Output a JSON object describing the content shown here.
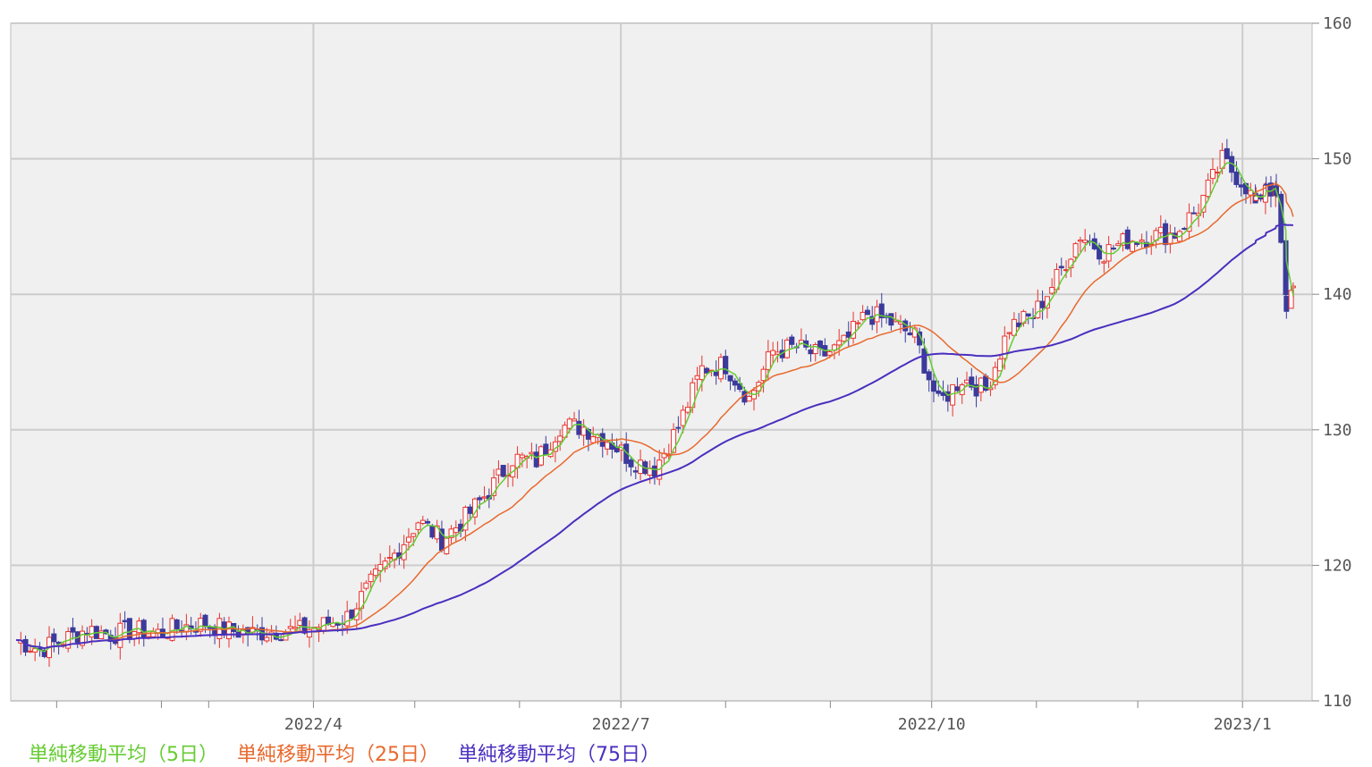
{
  "chart_data": {
    "type": "line",
    "subtype": "candlestick",
    "title": "",
    "xlabel": "",
    "ylabel": "",
    "ylim": [
      110,
      160
    ],
    "yticks": [
      110,
      120,
      130,
      140,
      150,
      160
    ],
    "x_tick_labels": [
      {
        "date": "2022-04-01",
        "label": "2022/4"
      },
      {
        "date": "2022-07-01",
        "label": "2022/7"
      },
      {
        "date": "2022-10-01",
        "label": "2022/10"
      },
      {
        "date": "2023-01-01",
        "label": "2023/1"
      }
    ],
    "minor_grid_dates": [
      "2022-01-15",
      "2022-02-15",
      "2022-03-01",
      "2022-05-01",
      "2022-06-01",
      "2022-08-01",
      "2022-09-01",
      "2022-11-01",
      "2022-12-01"
    ],
    "x_range": [
      "2022-01-03",
      "2023-01-20"
    ],
    "grid": true,
    "legend_position": "bottom",
    "up_color": "#e8332d",
    "down_color": "#3b3b9c",
    "close_series": {
      "name": "close",
      "points": [
        [
          "2022-01-03",
          114.5
        ],
        [
          "2022-01-10",
          113.8
        ],
        [
          "2022-01-17",
          114.5
        ],
        [
          "2022-01-24",
          115.3
        ],
        [
          "2022-01-31",
          114.9
        ],
        [
          "2022-02-07",
          115.2
        ],
        [
          "2022-02-14",
          115.0
        ],
        [
          "2022-02-21",
          115.5
        ],
        [
          "2022-02-28",
          115.7
        ],
        [
          "2022-03-07",
          115.2
        ],
        [
          "2022-03-14",
          115.0
        ],
        [
          "2022-03-21",
          115.2
        ],
        [
          "2022-03-28",
          115.2
        ],
        [
          "2022-04-04",
          115.6
        ],
        [
          "2022-04-11",
          116.2
        ],
        [
          "2022-04-18",
          118.6
        ],
        [
          "2022-04-25",
          120.8
        ],
        [
          "2022-05-02",
          123.3
        ],
        [
          "2022-05-09",
          121.9
        ],
        [
          "2022-05-16",
          123.5
        ],
        [
          "2022-05-23",
          125.5
        ],
        [
          "2022-05-30",
          127.9
        ],
        [
          "2022-06-06",
          127.7
        ],
        [
          "2022-06-13",
          130.3
        ],
        [
          "2022-06-20",
          130.2
        ],
        [
          "2022-06-27",
          129.3
        ],
        [
          "2022-07-04",
          127.8
        ],
        [
          "2022-07-11",
          127.2
        ],
        [
          "2022-07-18",
          130.2
        ],
        [
          "2022-07-25",
          134.5
        ],
        [
          "2022-08-01",
          134.8
        ],
        [
          "2022-08-08",
          132.3
        ],
        [
          "2022-08-15",
          135.8
        ],
        [
          "2022-08-22",
          136.1
        ],
        [
          "2022-08-29",
          135.4
        ],
        [
          "2022-09-05",
          136.3
        ],
        [
          "2022-09-12",
          138.6
        ],
        [
          "2022-09-19",
          137.9
        ],
        [
          "2022-09-26",
          136.9
        ],
        [
          "2022-10-03",
          131.9
        ],
        [
          "2022-10-10",
          133.8
        ],
        [
          "2022-10-17",
          132.9
        ],
        [
          "2022-10-24",
          137.6
        ],
        [
          "2022-10-31",
          138.4
        ],
        [
          "2022-11-07",
          141.2
        ],
        [
          "2022-11-14",
          144.4
        ],
        [
          "2022-11-21",
          143.1
        ],
        [
          "2022-11-28",
          144.0
        ],
        [
          "2022-12-05",
          144.3
        ],
        [
          "2022-12-12",
          144.5
        ],
        [
          "2022-12-19",
          146.4
        ],
        [
          "2022-12-26",
          149.9
        ],
        [
          "2023-01-02",
          148.0
        ],
        [
          "2023-01-05",
          146.5
        ],
        [
          "2023-01-08",
          148.4
        ],
        [
          "2023-01-11",
          147.1
        ],
        [
          "2023-01-14",
          139.1
        ],
        [
          "2023-01-16",
          140.6
        ]
      ]
    },
    "series": [
      {
        "name": "単純移動平均（5日）",
        "color": "#66cc33"
      },
      {
        "name": "単純移動平均（25日）",
        "color": "#e8692d"
      },
      {
        "name": "単純移動平均（75日）",
        "color": "#4a2fbf"
      }
    ]
  }
}
